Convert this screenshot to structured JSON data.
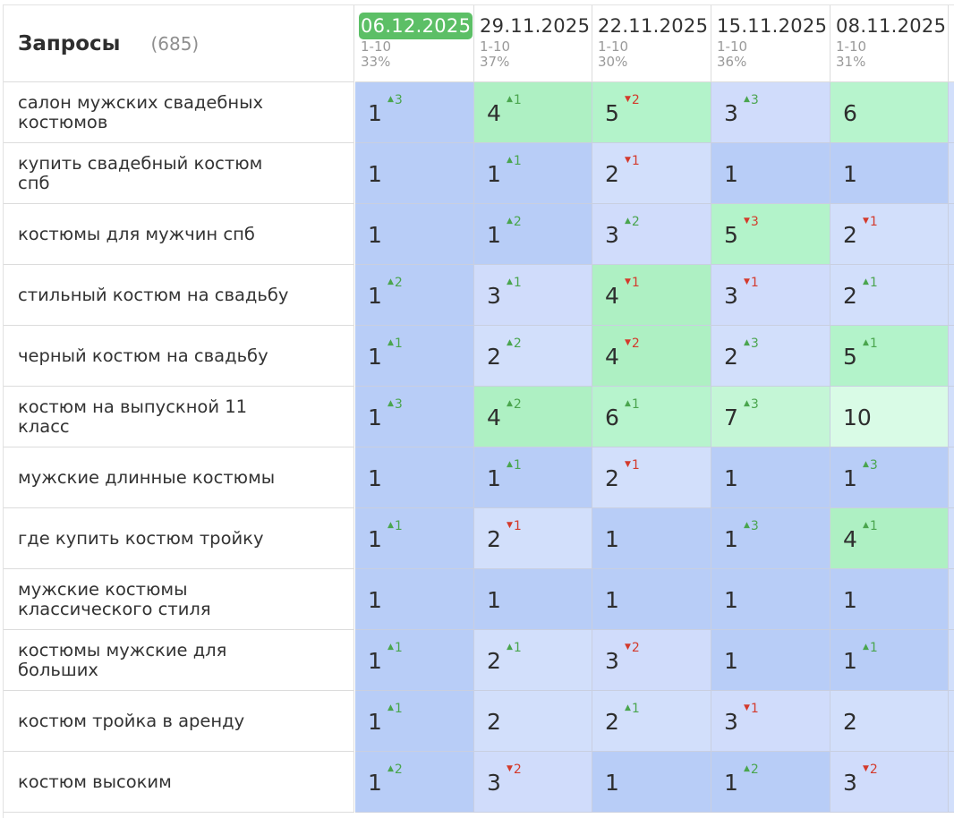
{
  "header": {
    "title": "Запросы",
    "count": "(685)"
  },
  "dates": [
    {
      "date": "06.12.2025",
      "range": "1-10",
      "pct": "33%",
      "active": true
    },
    {
      "date": "29.11.2025",
      "range": "1-10",
      "pct": "37%",
      "active": false
    },
    {
      "date": "22.11.2025",
      "range": "1-10",
      "pct": "30%",
      "active": false
    },
    {
      "date": "15.11.2025",
      "range": "1-10",
      "pct": "36%",
      "active": false
    },
    {
      "date": "08.11.2025",
      "range": "1-10",
      "pct": "31%",
      "active": false
    }
  ],
  "colors": {
    "pos_1": "#b8cdf7",
    "pos_2": "#d2dffb",
    "pos_3": "#d0dcfb",
    "pos_4": "#aef0c3",
    "pos_5": "#b3f3ca",
    "pos_6": "#b7f4cd",
    "pos_7": "#c4f6d6",
    "pos_10": "#d9fbe6",
    "up": "#4aa54e",
    "down": "#d33a2c",
    "active_date": "#5cbf66"
  },
  "rows": [
    {
      "query": "салон мужских свадебных костюмов",
      "cells": [
        {
          "pos": "1",
          "dir": "up",
          "delta": "3"
        },
        {
          "pos": "4",
          "dir": "up",
          "delta": "1"
        },
        {
          "pos": "5",
          "dir": "down",
          "delta": "2"
        },
        {
          "pos": "3",
          "dir": "up",
          "delta": "3"
        },
        {
          "pos": "6",
          "dir": "",
          "delta": ""
        }
      ]
    },
    {
      "query": "купить свадебный костюм спб",
      "cells": [
        {
          "pos": "1",
          "dir": "",
          "delta": ""
        },
        {
          "pos": "1",
          "dir": "up",
          "delta": "1"
        },
        {
          "pos": "2",
          "dir": "down",
          "delta": "1"
        },
        {
          "pos": "1",
          "dir": "",
          "delta": ""
        },
        {
          "pos": "1",
          "dir": "",
          "delta": ""
        }
      ]
    },
    {
      "query": "костюмы для мужчин спб",
      "cells": [
        {
          "pos": "1",
          "dir": "",
          "delta": ""
        },
        {
          "pos": "1",
          "dir": "up",
          "delta": "2"
        },
        {
          "pos": "3",
          "dir": "up",
          "delta": "2"
        },
        {
          "pos": "5",
          "dir": "down",
          "delta": "3"
        },
        {
          "pos": "2",
          "dir": "down",
          "delta": "1"
        }
      ]
    },
    {
      "query": "стильный костюм на свадьбу",
      "cells": [
        {
          "pos": "1",
          "dir": "up",
          "delta": "2"
        },
        {
          "pos": "3",
          "dir": "up",
          "delta": "1"
        },
        {
          "pos": "4",
          "dir": "down",
          "delta": "1"
        },
        {
          "pos": "3",
          "dir": "down",
          "delta": "1"
        },
        {
          "pos": "2",
          "dir": "up",
          "delta": "1"
        }
      ]
    },
    {
      "query": "черный костюм на свадьбу",
      "cells": [
        {
          "pos": "1",
          "dir": "up",
          "delta": "1"
        },
        {
          "pos": "2",
          "dir": "up",
          "delta": "2"
        },
        {
          "pos": "4",
          "dir": "down",
          "delta": "2"
        },
        {
          "pos": "2",
          "dir": "up",
          "delta": "3"
        },
        {
          "pos": "5",
          "dir": "up",
          "delta": "1"
        }
      ]
    },
    {
      "query": "костюм на выпускной 11 класс",
      "cells": [
        {
          "pos": "1",
          "dir": "up",
          "delta": "3"
        },
        {
          "pos": "4",
          "dir": "up",
          "delta": "2"
        },
        {
          "pos": "6",
          "dir": "up",
          "delta": "1"
        },
        {
          "pos": "7",
          "dir": "up",
          "delta": "3"
        },
        {
          "pos": "10",
          "dir": "",
          "delta": ""
        }
      ]
    },
    {
      "query": "мужские длинные костюмы",
      "cells": [
        {
          "pos": "1",
          "dir": "",
          "delta": ""
        },
        {
          "pos": "1",
          "dir": "up",
          "delta": "1"
        },
        {
          "pos": "2",
          "dir": "down",
          "delta": "1"
        },
        {
          "pos": "1",
          "dir": "",
          "delta": ""
        },
        {
          "pos": "1",
          "dir": "up",
          "delta": "3"
        }
      ]
    },
    {
      "query": "где купить костюм тройку",
      "cells": [
        {
          "pos": "1",
          "dir": "up",
          "delta": "1"
        },
        {
          "pos": "2",
          "dir": "down",
          "delta": "1"
        },
        {
          "pos": "1",
          "dir": "",
          "delta": ""
        },
        {
          "pos": "1",
          "dir": "up",
          "delta": "3"
        },
        {
          "pos": "4",
          "dir": "up",
          "delta": "1"
        }
      ]
    },
    {
      "query": "мужские костюмы классического стиля",
      "cells": [
        {
          "pos": "1",
          "dir": "",
          "delta": ""
        },
        {
          "pos": "1",
          "dir": "",
          "delta": ""
        },
        {
          "pos": "1",
          "dir": "",
          "delta": ""
        },
        {
          "pos": "1",
          "dir": "",
          "delta": ""
        },
        {
          "pos": "1",
          "dir": "",
          "delta": ""
        }
      ]
    },
    {
      "query": "костюмы мужские для больших",
      "cells": [
        {
          "pos": "1",
          "dir": "up",
          "delta": "1"
        },
        {
          "pos": "2",
          "dir": "up",
          "delta": "1"
        },
        {
          "pos": "3",
          "dir": "down",
          "delta": "2"
        },
        {
          "pos": "1",
          "dir": "",
          "delta": ""
        },
        {
          "pos": "1",
          "dir": "up",
          "delta": "1"
        }
      ]
    },
    {
      "query": "костюм тройка в аренду",
      "cells": [
        {
          "pos": "1",
          "dir": "up",
          "delta": "1"
        },
        {
          "pos": "2",
          "dir": "",
          "delta": ""
        },
        {
          "pos": "2",
          "dir": "up",
          "delta": "1"
        },
        {
          "pos": "3",
          "dir": "down",
          "delta": "1"
        },
        {
          "pos": "2",
          "dir": "",
          "delta": ""
        }
      ]
    },
    {
      "query": "костюм высоким",
      "cells": [
        {
          "pos": "1",
          "dir": "up",
          "delta": "2"
        },
        {
          "pos": "3",
          "dir": "down",
          "delta": "2"
        },
        {
          "pos": "1",
          "dir": "",
          "delta": ""
        },
        {
          "pos": "1",
          "dir": "up",
          "delta": "2"
        },
        {
          "pos": "3",
          "dir": "down",
          "delta": "2"
        }
      ]
    }
  ]
}
